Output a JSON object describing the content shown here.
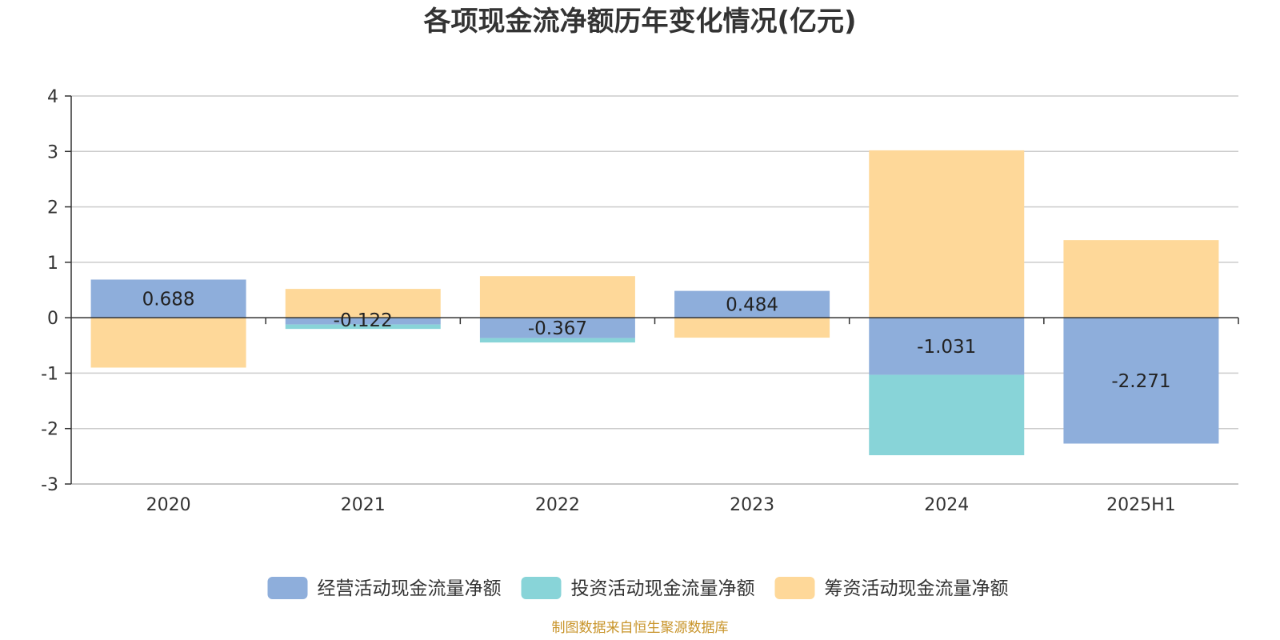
{
  "chart_data": {
    "type": "bar",
    "stacked": true,
    "title": "各项现金流净额历年变化情况(亿元)",
    "xlabel": "",
    "ylabel": "",
    "ylim": [
      -3,
      4
    ],
    "yticks": [
      4,
      3,
      2,
      1,
      0,
      -1,
      -2,
      -3
    ],
    "grid": true,
    "legend_position": "bottom",
    "categories": [
      "2020",
      "2021",
      "2022",
      "2023",
      "2024",
      "2025H1"
    ],
    "series": [
      {
        "name": "经营活动现金流量净额",
        "color": "#8eaedb",
        "values": [
          0.688,
          -0.122,
          -0.367,
          0.484,
          -1.031,
          -2.271
        ],
        "labels": [
          "0.688",
          "-0.122",
          "-0.367",
          "0.484",
          "-1.031",
          "-2.271"
        ]
      },
      {
        "name": "投资活动现金流量净额",
        "color": "#88d4d8",
        "values": [
          0,
          -0.08,
          -0.08,
          0,
          -1.45,
          0
        ]
      },
      {
        "name": "筹资活动现金流量净额",
        "color": "#fed899",
        "values": [
          -0.9,
          0.52,
          0.75,
          -0.36,
          3.02,
          1.4
        ]
      }
    ],
    "source_note": "制图数据来自恒生聚源数据库"
  }
}
